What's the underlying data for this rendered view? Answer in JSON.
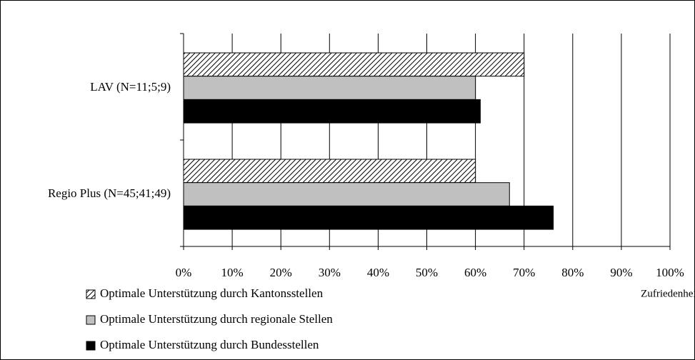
{
  "chart_data": {
    "type": "barh",
    "categories": [
      "LAV (N=11;5;9)",
      "Regio Plus (N=45;41;49)"
    ],
    "series": [
      {
        "name": "Optimale Unterstützung durch Kantonsstellen",
        "color": "#000000",
        "pattern": "hatch",
        "values": [
          70,
          60
        ]
      },
      {
        "name": "Optimale Unterstützung durch regionale Stellen",
        "color": "#c0c0c0",
        "values": [
          60,
          67
        ]
      },
      {
        "name": "Optimale Unterstützung durch Bundesstellen",
        "color": "#000000",
        "values": [
          61,
          76
        ]
      }
    ],
    "xlabel": "Zufriedenheit",
    "xlim": [
      0,
      100
    ],
    "xticks": [
      {
        "value": 0,
        "label": "0%"
      },
      {
        "value": 10,
        "label": "10%"
      },
      {
        "value": 20,
        "label": "20%"
      },
      {
        "value": 30,
        "label": "30%"
      },
      {
        "value": 40,
        "label": "40%"
      },
      {
        "value": 50,
        "label": "50%"
      },
      {
        "value": 60,
        "label": "60%"
      },
      {
        "value": 70,
        "label": "70%"
      },
      {
        "value": 80,
        "label": "80%"
      },
      {
        "value": 90,
        "label": "90%"
      },
      {
        "value": 100,
        "label": "100%"
      }
    ],
    "grid": true,
    "legend": "bottom-left"
  }
}
